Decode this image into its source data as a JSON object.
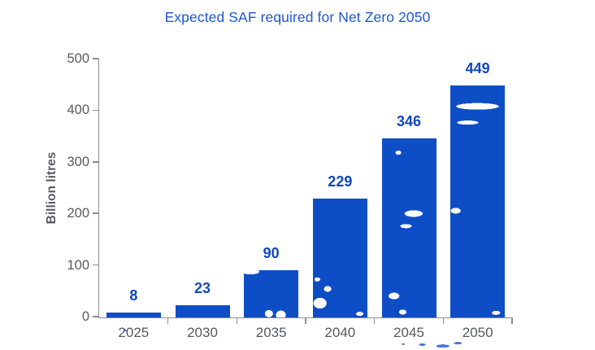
{
  "chart_data": {
    "type": "bar",
    "title": "Expected SAF required for Net Zero 2050",
    "categories": [
      "2025",
      "2030",
      "2035",
      "2040",
      "2045",
      "2050"
    ],
    "values": [
      8,
      23,
      90,
      229,
      346,
      449
    ],
    "xlabel": "",
    "ylabel": "Billion litres",
    "ylim": [
      0,
      500
    ],
    "yticks": [
      0,
      100,
      200,
      300,
      400,
      500
    ],
    "grid": false,
    "legend_position": "none",
    "colors": {
      "bar": "#0d4ec6",
      "value_label": "#1147c0",
      "title": "#1e57d0",
      "axis_line": "#8a8c8e",
      "tick_label": "#58595b",
      "y_axis_title": "#5a5b5e"
    }
  }
}
